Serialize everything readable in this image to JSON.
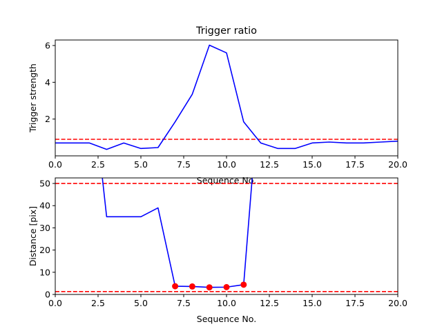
{
  "chart_data": [
    {
      "type": "line",
      "title": "Trigger ratio",
      "xlabel": "Sequence No.",
      "ylabel": "Trigger strength",
      "xlim": [
        0,
        20
      ],
      "ylim": [
        0,
        6.3
      ],
      "xticks": [
        "0.0",
        "2.5",
        "5.0",
        "7.5",
        "10.0",
        "12.5",
        "15.0",
        "17.5",
        "20.0"
      ],
      "yticks": [
        "2",
        "4",
        "6"
      ],
      "series": [
        {
          "color": "#0000ff",
          "style": "solid",
          "x": [
            0,
            1,
            2,
            3,
            4,
            5,
            6,
            7,
            8,
            9,
            10,
            11,
            12,
            13,
            14,
            15,
            16,
            17,
            18,
            19,
            20
          ],
          "y": [
            0.7,
            0.7,
            0.7,
            0.35,
            0.7,
            0.4,
            0.45,
            1.85,
            3.35,
            6.02,
            5.6,
            1.85,
            0.7,
            0.4,
            0.4,
            0.7,
            0.75,
            0.7,
            0.7,
            0.75,
            0.8
          ]
        }
      ],
      "hlines": [
        {
          "y": 0.9,
          "color": "#ff0000",
          "style": "dashed"
        }
      ],
      "grid": false
    },
    {
      "type": "line",
      "title": "",
      "xlabel": "Sequence No.",
      "ylabel": "Distance [pix]",
      "xlim": [
        0,
        20
      ],
      "ylim": [
        0,
        52.5
      ],
      "xticks": [
        "0.0",
        "2.5",
        "5.0",
        "7.5",
        "10.0",
        "12.5",
        "15.0",
        "17.5",
        "20.0"
      ],
      "yticks": [
        "0",
        "10",
        "20",
        "30",
        "40",
        "50"
      ],
      "series": [
        {
          "color": "#0000ff",
          "style": "solid",
          "x": [
            2.75,
            3,
            4,
            5,
            6,
            7,
            8,
            9,
            10,
            11,
            11.5
          ],
          "y": [
            52.5,
            35,
            35,
            35,
            39,
            3.7,
            3.6,
            3.2,
            3.3,
            4.4,
            52.5
          ]
        },
        {
          "type": "scatter",
          "color": "#ff0000",
          "x": [
            7,
            8,
            9,
            10,
            11
          ],
          "y": [
            3.7,
            3.6,
            3.2,
            3.3,
            4.4
          ]
        }
      ],
      "hlines": [
        {
          "y": 50,
          "color": "#ff0000",
          "style": "dashed"
        },
        {
          "y": 1.3,
          "color": "#ff0000",
          "style": "dashed"
        }
      ],
      "grid": false
    }
  ]
}
